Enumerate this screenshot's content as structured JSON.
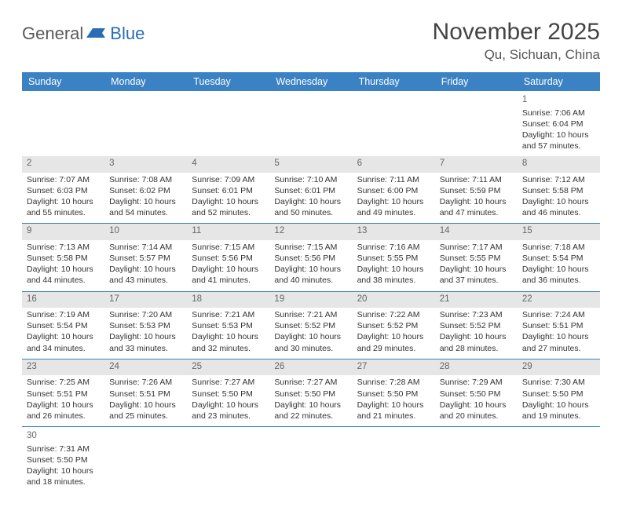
{
  "brand": {
    "part1": "General",
    "part2": "Blue"
  },
  "header": {
    "month": "November 2025",
    "location": "Qu, Sichuan, China"
  },
  "colors": {
    "header_bg": "#3b82c4",
    "num_bg": "#e6e6e6",
    "row_border": "#3b82c4",
    "text": "#333333"
  },
  "dayNames": [
    "Sunday",
    "Monday",
    "Tuesday",
    "Wednesday",
    "Thursday",
    "Friday",
    "Saturday"
  ],
  "weeks": [
    [
      null,
      null,
      null,
      null,
      null,
      null,
      {
        "d": "1",
        "sr": "Sunrise: 7:06 AM",
        "ss": "Sunset: 6:04 PM",
        "dl1": "Daylight: 10 hours",
        "dl2": "and 57 minutes."
      }
    ],
    [
      {
        "d": "2",
        "sr": "Sunrise: 7:07 AM",
        "ss": "Sunset: 6:03 PM",
        "dl1": "Daylight: 10 hours",
        "dl2": "and 55 minutes."
      },
      {
        "d": "3",
        "sr": "Sunrise: 7:08 AM",
        "ss": "Sunset: 6:02 PM",
        "dl1": "Daylight: 10 hours",
        "dl2": "and 54 minutes."
      },
      {
        "d": "4",
        "sr": "Sunrise: 7:09 AM",
        "ss": "Sunset: 6:01 PM",
        "dl1": "Daylight: 10 hours",
        "dl2": "and 52 minutes."
      },
      {
        "d": "5",
        "sr": "Sunrise: 7:10 AM",
        "ss": "Sunset: 6:01 PM",
        "dl1": "Daylight: 10 hours",
        "dl2": "and 50 minutes."
      },
      {
        "d": "6",
        "sr": "Sunrise: 7:11 AM",
        "ss": "Sunset: 6:00 PM",
        "dl1": "Daylight: 10 hours",
        "dl2": "and 49 minutes."
      },
      {
        "d": "7",
        "sr": "Sunrise: 7:11 AM",
        "ss": "Sunset: 5:59 PM",
        "dl1": "Daylight: 10 hours",
        "dl2": "and 47 minutes."
      },
      {
        "d": "8",
        "sr": "Sunrise: 7:12 AM",
        "ss": "Sunset: 5:58 PM",
        "dl1": "Daylight: 10 hours",
        "dl2": "and 46 minutes."
      }
    ],
    [
      {
        "d": "9",
        "sr": "Sunrise: 7:13 AM",
        "ss": "Sunset: 5:58 PM",
        "dl1": "Daylight: 10 hours",
        "dl2": "and 44 minutes."
      },
      {
        "d": "10",
        "sr": "Sunrise: 7:14 AM",
        "ss": "Sunset: 5:57 PM",
        "dl1": "Daylight: 10 hours",
        "dl2": "and 43 minutes."
      },
      {
        "d": "11",
        "sr": "Sunrise: 7:15 AM",
        "ss": "Sunset: 5:56 PM",
        "dl1": "Daylight: 10 hours",
        "dl2": "and 41 minutes."
      },
      {
        "d": "12",
        "sr": "Sunrise: 7:15 AM",
        "ss": "Sunset: 5:56 PM",
        "dl1": "Daylight: 10 hours",
        "dl2": "and 40 minutes."
      },
      {
        "d": "13",
        "sr": "Sunrise: 7:16 AM",
        "ss": "Sunset: 5:55 PM",
        "dl1": "Daylight: 10 hours",
        "dl2": "and 38 minutes."
      },
      {
        "d": "14",
        "sr": "Sunrise: 7:17 AM",
        "ss": "Sunset: 5:55 PM",
        "dl1": "Daylight: 10 hours",
        "dl2": "and 37 minutes."
      },
      {
        "d": "15",
        "sr": "Sunrise: 7:18 AM",
        "ss": "Sunset: 5:54 PM",
        "dl1": "Daylight: 10 hours",
        "dl2": "and 36 minutes."
      }
    ],
    [
      {
        "d": "16",
        "sr": "Sunrise: 7:19 AM",
        "ss": "Sunset: 5:54 PM",
        "dl1": "Daylight: 10 hours",
        "dl2": "and 34 minutes."
      },
      {
        "d": "17",
        "sr": "Sunrise: 7:20 AM",
        "ss": "Sunset: 5:53 PM",
        "dl1": "Daylight: 10 hours",
        "dl2": "and 33 minutes."
      },
      {
        "d": "18",
        "sr": "Sunrise: 7:21 AM",
        "ss": "Sunset: 5:53 PM",
        "dl1": "Daylight: 10 hours",
        "dl2": "and 32 minutes."
      },
      {
        "d": "19",
        "sr": "Sunrise: 7:21 AM",
        "ss": "Sunset: 5:52 PM",
        "dl1": "Daylight: 10 hours",
        "dl2": "and 30 minutes."
      },
      {
        "d": "20",
        "sr": "Sunrise: 7:22 AM",
        "ss": "Sunset: 5:52 PM",
        "dl1": "Daylight: 10 hours",
        "dl2": "and 29 minutes."
      },
      {
        "d": "21",
        "sr": "Sunrise: 7:23 AM",
        "ss": "Sunset: 5:52 PM",
        "dl1": "Daylight: 10 hours",
        "dl2": "and 28 minutes."
      },
      {
        "d": "22",
        "sr": "Sunrise: 7:24 AM",
        "ss": "Sunset: 5:51 PM",
        "dl1": "Daylight: 10 hours",
        "dl2": "and 27 minutes."
      }
    ],
    [
      {
        "d": "23",
        "sr": "Sunrise: 7:25 AM",
        "ss": "Sunset: 5:51 PM",
        "dl1": "Daylight: 10 hours",
        "dl2": "and 26 minutes."
      },
      {
        "d": "24",
        "sr": "Sunrise: 7:26 AM",
        "ss": "Sunset: 5:51 PM",
        "dl1": "Daylight: 10 hours",
        "dl2": "and 25 minutes."
      },
      {
        "d": "25",
        "sr": "Sunrise: 7:27 AM",
        "ss": "Sunset: 5:50 PM",
        "dl1": "Daylight: 10 hours",
        "dl2": "and 23 minutes."
      },
      {
        "d": "26",
        "sr": "Sunrise: 7:27 AM",
        "ss": "Sunset: 5:50 PM",
        "dl1": "Daylight: 10 hours",
        "dl2": "and 22 minutes."
      },
      {
        "d": "27",
        "sr": "Sunrise: 7:28 AM",
        "ss": "Sunset: 5:50 PM",
        "dl1": "Daylight: 10 hours",
        "dl2": "and 21 minutes."
      },
      {
        "d": "28",
        "sr": "Sunrise: 7:29 AM",
        "ss": "Sunset: 5:50 PM",
        "dl1": "Daylight: 10 hours",
        "dl2": "and 20 minutes."
      },
      {
        "d": "29",
        "sr": "Sunrise: 7:30 AM",
        "ss": "Sunset: 5:50 PM",
        "dl1": "Daylight: 10 hours",
        "dl2": "and 19 minutes."
      }
    ],
    [
      {
        "d": "30",
        "sr": "Sunrise: 7:31 AM",
        "ss": "Sunset: 5:50 PM",
        "dl1": "Daylight: 10 hours",
        "dl2": "and 18 minutes."
      },
      null,
      null,
      null,
      null,
      null,
      null
    ]
  ]
}
